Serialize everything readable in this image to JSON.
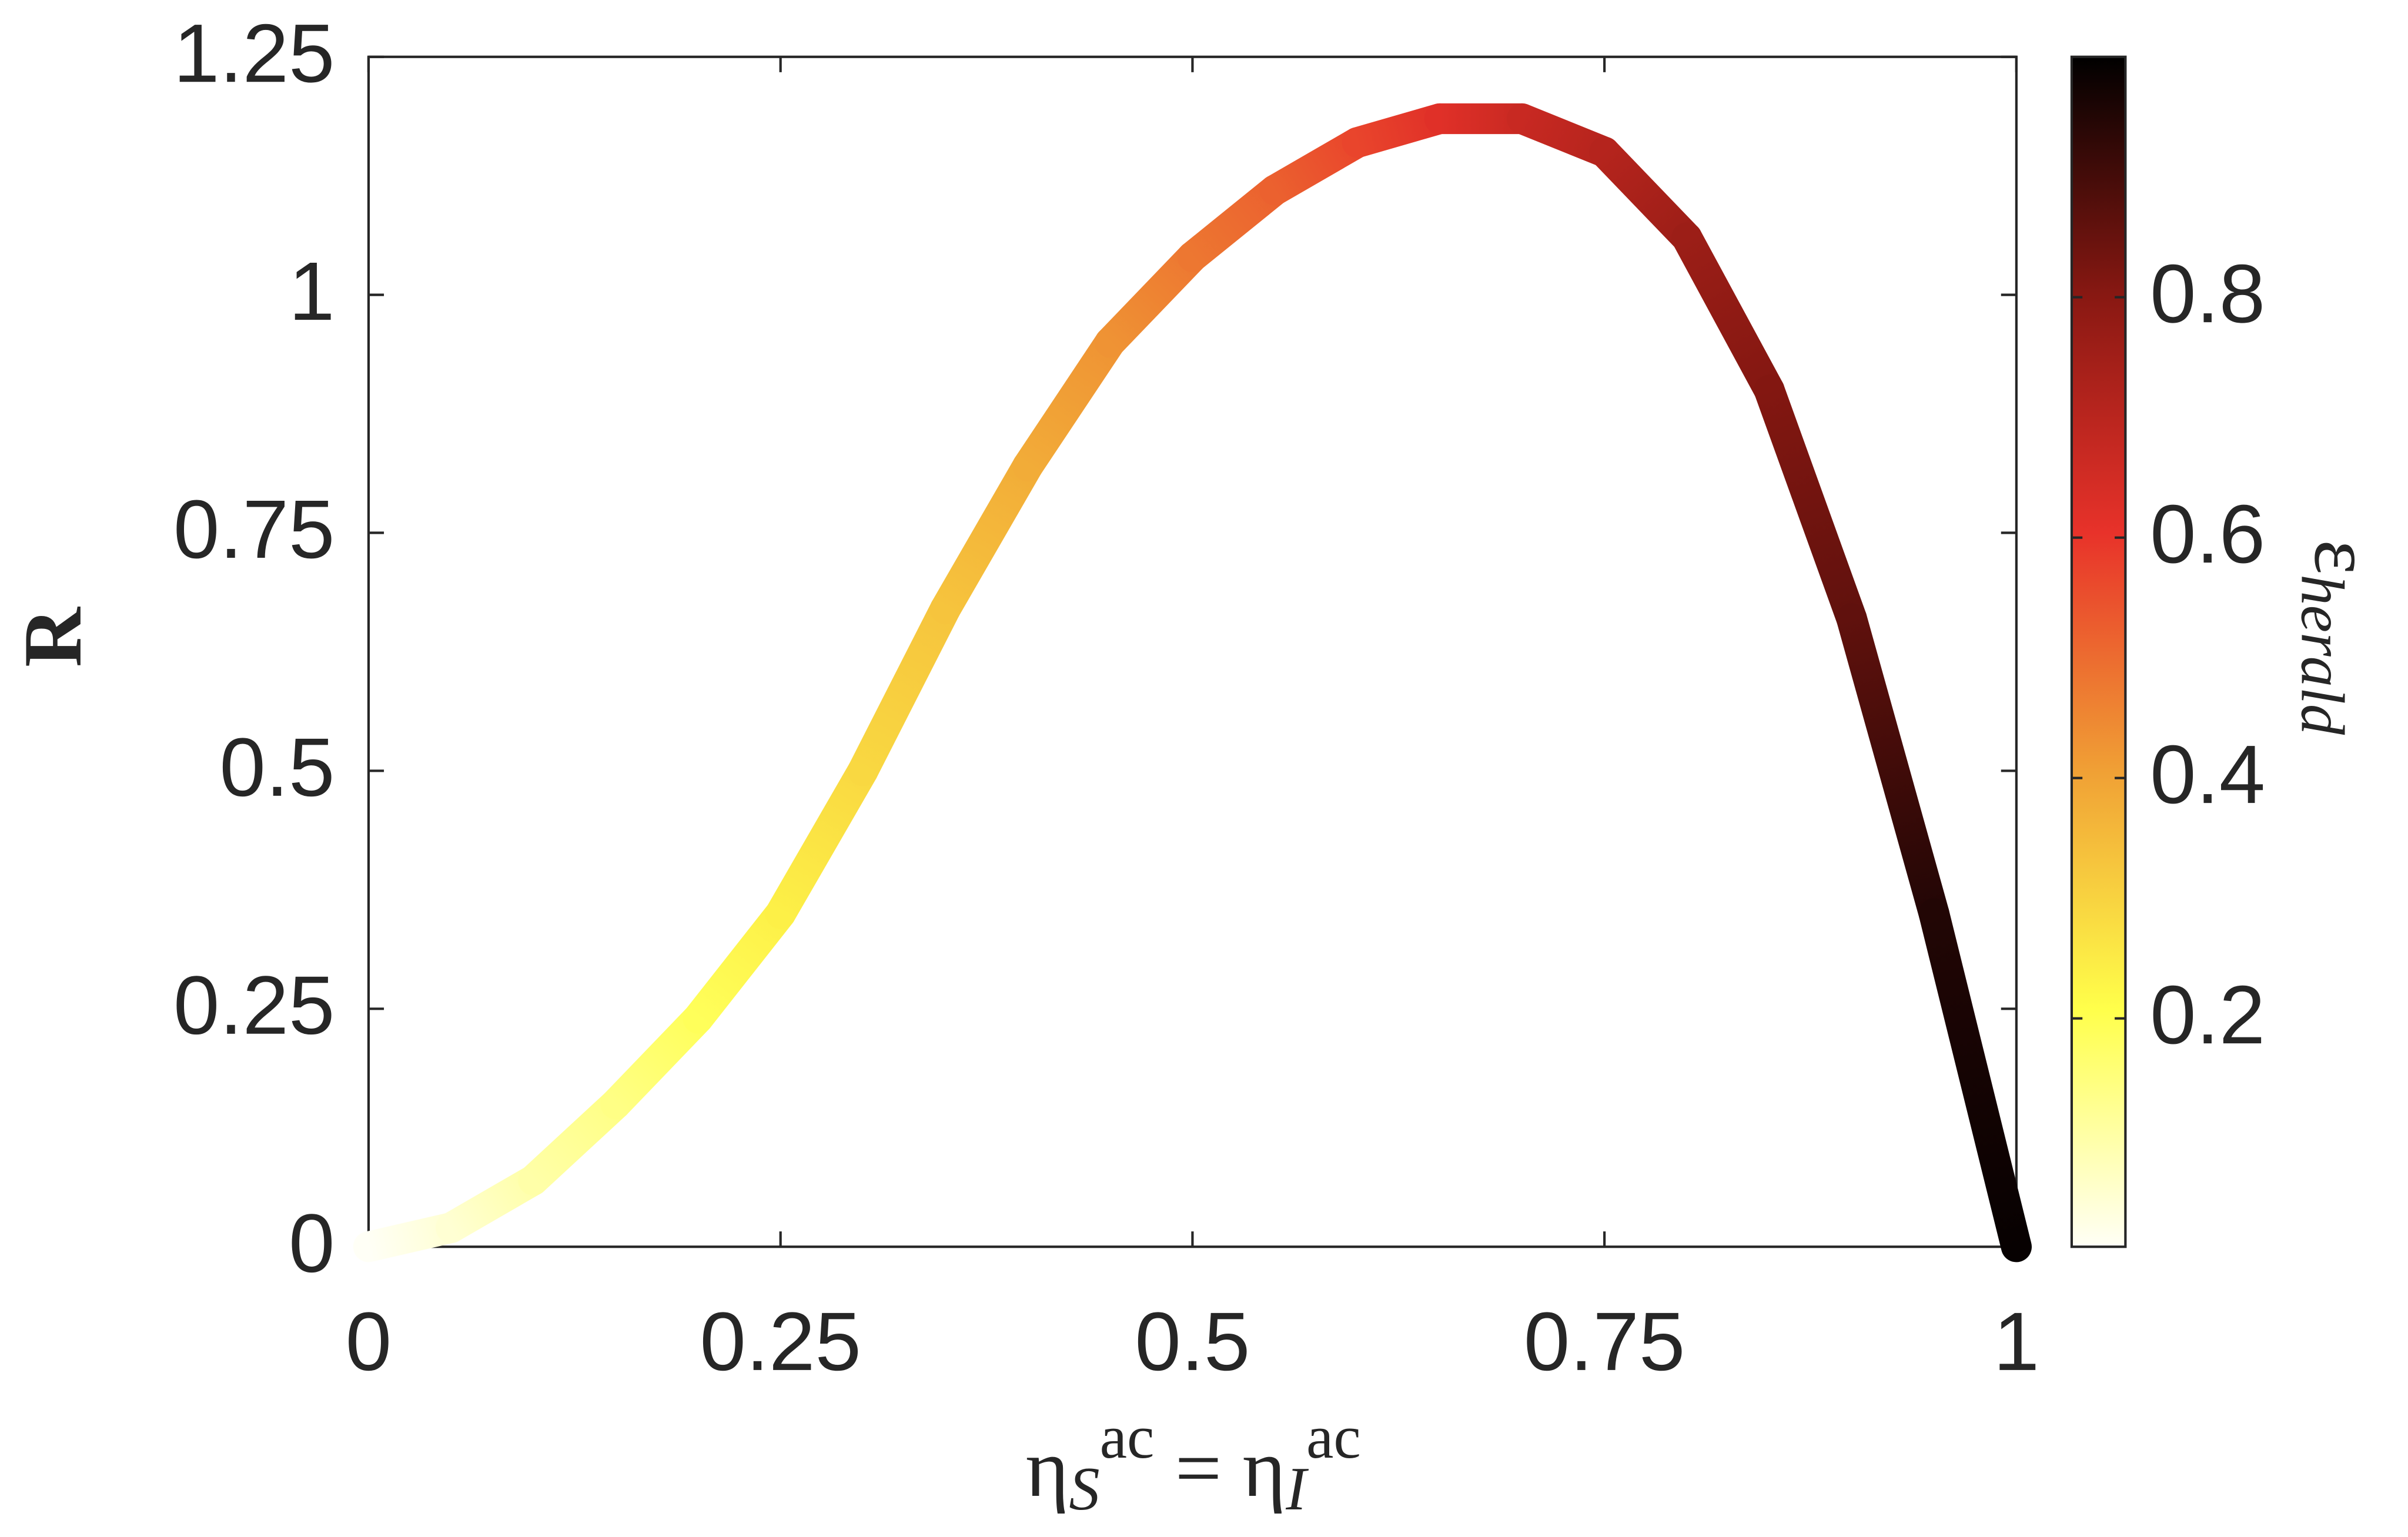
{
  "chart_data": {
    "type": "colored-line",
    "ylabel": "R",
    "xlabel": [
      {
        "text": "η",
        "shift": "base"
      },
      {
        "text": "S",
        "shift": "sub"
      },
      {
        "text": "ac",
        "shift": "sup"
      },
      {
        "text": " = η",
        "shift": "base"
      },
      {
        "text": "I",
        "shift": "sub"
      },
      {
        "text": "ac",
        "shift": "sup"
      }
    ],
    "colorbar_label": [
      {
        "text": "ε",
        "shift": "base"
      },
      {
        "text": "herald",
        "shift": "sub"
      }
    ],
    "x": [
      0,
      0.05,
      0.1,
      0.15,
      0.2,
      0.25,
      0.3,
      0.35,
      0.4,
      0.45,
      0.5,
      0.55,
      0.6,
      0.65,
      0.7,
      0.75,
      0.8,
      0.85,
      0.9,
      0.95,
      1
    ],
    "values": [
      0,
      0.02,
      0.07,
      0.15,
      0.24,
      0.35,
      0.5,
      0.67,
      0.82,
      0.95,
      1.04,
      1.11,
      1.16,
      1.185,
      1.185,
      1.15,
      1.06,
      0.9,
      0.66,
      0.35,
      0
    ],
    "color_values": [
      0.01,
      0.05,
      0.1,
      0.14,
      0.19,
      0.24,
      0.29,
      0.33,
      0.38,
      0.43,
      0.48,
      0.52,
      0.57,
      0.62,
      0.67,
      0.71,
      0.76,
      0.81,
      0.86,
      0.95,
      0.99
    ],
    "colormap": [
      "#fffff6",
      "#ffff4a",
      "#f0a035",
      "#e8322a",
      "#881812",
      "#000000"
    ],
    "clim": [
      0.01,
      1.0
    ],
    "cticks": [
      0.2,
      0.4,
      0.6,
      0.8
    ],
    "xlim": [
      0,
      1
    ],
    "xticks": [
      0,
      0.25,
      0.5,
      0.75,
      1
    ],
    "ylim": [
      0,
      1.25
    ],
    "yticks": [
      0,
      0.25,
      0.5,
      0.75,
      1,
      1.25
    ]
  }
}
